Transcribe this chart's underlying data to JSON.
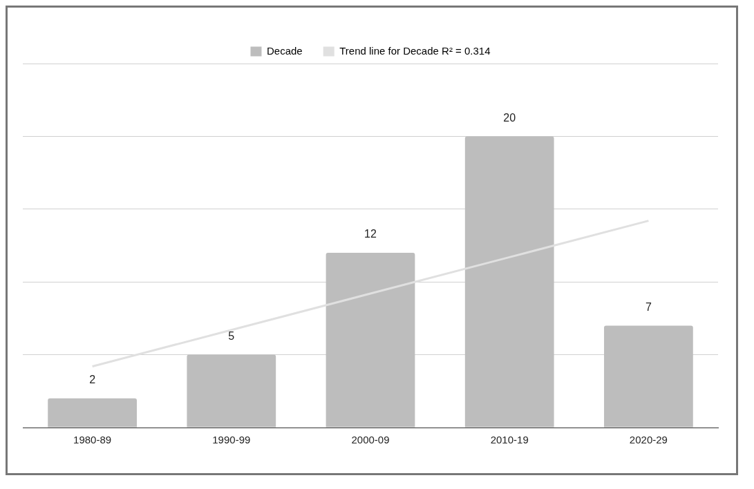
{
  "chart_data": {
    "type": "bar",
    "categories": [
      "1980-89",
      "1990-99",
      "2000-09",
      "2010-19",
      "2020-29"
    ],
    "series": [
      {
        "name": "Decade",
        "color": "#bdbdbd",
        "values": [
          2,
          5,
          12,
          20,
          7
        ],
        "value_labels": [
          "2",
          "5",
          "12",
          "20",
          "7"
        ]
      },
      {
        "name": "Trend line for Decade R² = 0.314",
        "type": "line",
        "color": "#e0e0e0",
        "values": [
          4.2,
          6.7,
          9.2,
          11.7,
          14.2
        ]
      }
    ],
    "ylim": [
      0,
      25
    ],
    "yticks": [
      {
        "value": 0,
        "label": null
      },
      {
        "value": 5,
        "label": null
      },
      {
        "value": 10,
        "label": null
      },
      {
        "value": 15,
        "label": null
      },
      {
        "value": 20,
        "label": null
      },
      {
        "value": 25,
        "label": null
      }
    ],
    "grid": "y",
    "tick_labels": "x",
    "legend": "top",
    "marker": "none"
  }
}
